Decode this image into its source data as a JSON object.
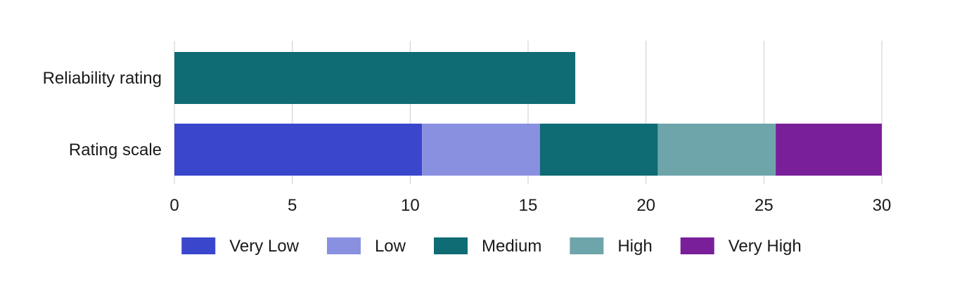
{
  "chart_data": {
    "type": "bar",
    "orientation": "horizontal",
    "stacked": true,
    "categories": [
      "Reliability rating",
      "Rating scale"
    ],
    "series": [
      {
        "name": "",
        "category": "Reliability rating",
        "values": [
          17,
          null
        ],
        "color": "#0f6b74"
      },
      {
        "name": "Very Low",
        "values": [
          null,
          10.5
        ],
        "color": "#3a46cc"
      },
      {
        "name": "Low",
        "values": [
          null,
          5
        ],
        "color": "#8a90e0"
      },
      {
        "name": "Medium",
        "values": [
          null,
          5
        ],
        "color": "#0f6b74"
      },
      {
        "name": "High",
        "values": [
          null,
          5
        ],
        "color": "#6ea5ab"
      },
      {
        "name": "Very High",
        "values": [
          null,
          4.5
        ],
        "color": "#7a1f9a"
      }
    ],
    "xlim": [
      0,
      30
    ],
    "xticks": [
      "0",
      "5",
      "10",
      "15",
      "20",
      "25",
      "30"
    ],
    "grid": true,
    "legend_position": "bottom",
    "legend": [
      {
        "label": "Very Low",
        "color": "#3a46cc"
      },
      {
        "label": "Low",
        "color": "#8a90e0"
      },
      {
        "label": "Medium",
        "color": "#0f6b74"
      },
      {
        "label": "High",
        "color": "#6ea5ab"
      },
      {
        "label": "Very High",
        "color": "#7a1f9a"
      }
    ]
  }
}
